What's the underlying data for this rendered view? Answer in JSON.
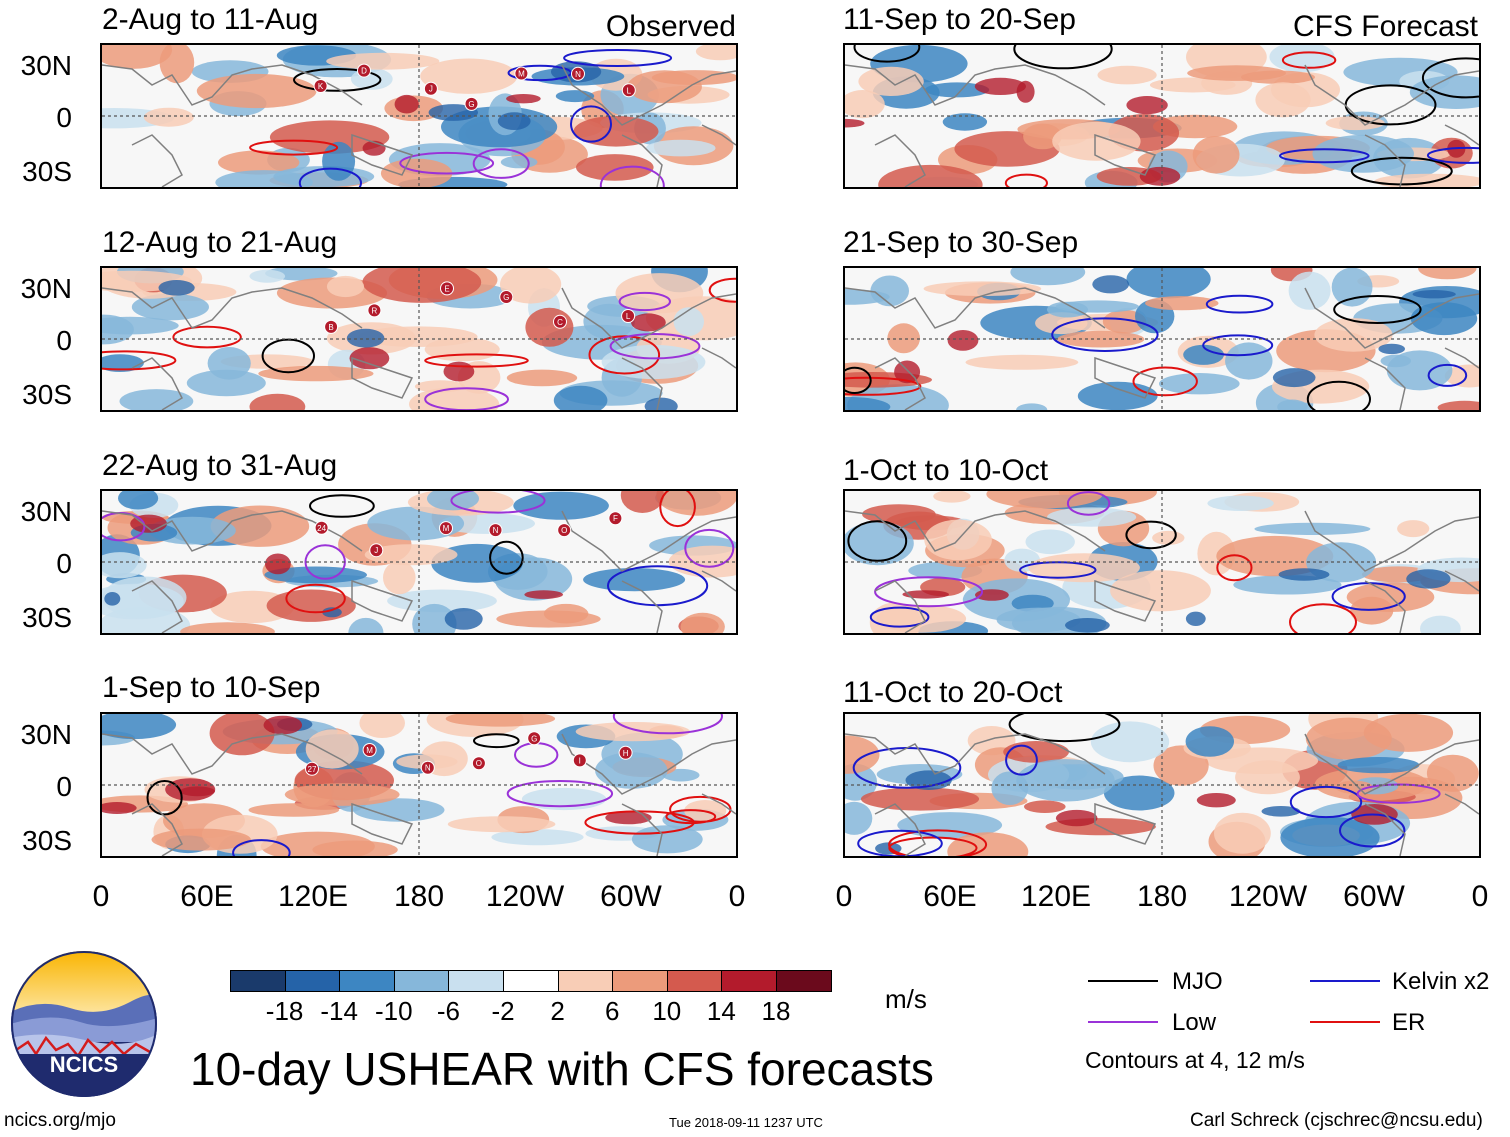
{
  "headers": {
    "left": "Observed",
    "right": "CFS Forecast"
  },
  "panels_left": [
    {
      "title": "2-Aug to 11-Aug",
      "storms": [
        "K",
        "D",
        "J",
        "G",
        "M",
        "N",
        "L"
      ]
    },
    {
      "title": "12-Aug to 21-Aug",
      "storms": [
        "B",
        "R",
        "E",
        "G",
        "C",
        "L"
      ]
    },
    {
      "title": "22-Aug to 31-Aug",
      "storms": [
        "24",
        "J",
        "M",
        "N",
        "O",
        "F"
      ]
    },
    {
      "title": "1-Sep to 10-Sep",
      "storms": [
        "27",
        "M",
        "N",
        "O",
        "G",
        "I",
        "H"
      ]
    }
  ],
  "panels_right": [
    {
      "title": "11-Sep to 20-Sep"
    },
    {
      "title": "21-Sep to 30-Sep"
    },
    {
      "title": "1-Oct to 10-Oct"
    },
    {
      "title": "11-Oct to 20-Oct"
    }
  ],
  "y_ticks": [
    "30N",
    "0",
    "30S"
  ],
  "x_ticks": [
    "0",
    "60E",
    "120E",
    "180",
    "120W",
    "60W",
    "0"
  ],
  "colorbar": {
    "labels": [
      "-18",
      "-14",
      "-10",
      "-6",
      "-2",
      "2",
      "6",
      "10",
      "14",
      "18"
    ],
    "colors": [
      "#1a3a6b",
      "#2563a8",
      "#3d86c2",
      "#86b7da",
      "#c9e0ef",
      "#ffffff",
      "#f8cdb6",
      "#ec9b7b",
      "#d45a4e",
      "#b31b2c",
      "#6b0a1c"
    ],
    "units": "m/s"
  },
  "legend": {
    "items": [
      {
        "label": "MJO",
        "color": "#000000"
      },
      {
        "label": "Kelvin x2",
        "color": "#1a1acc"
      },
      {
        "label": "Low",
        "color": "#9a32d8"
      },
      {
        "label": "ER",
        "color": "#e01010"
      }
    ],
    "note": "Contours at 4, 12 m/s"
  },
  "logo": {
    "text": "NCICS"
  },
  "main_title": "10-day USHEAR with CFS forecasts",
  "footer": {
    "url": "ncics.org/mjo",
    "timestamp": "Tue 2018-09-11 1237 UTC",
    "author": "Carl Schreck (cjschrec@ncsu.edu)"
  }
}
